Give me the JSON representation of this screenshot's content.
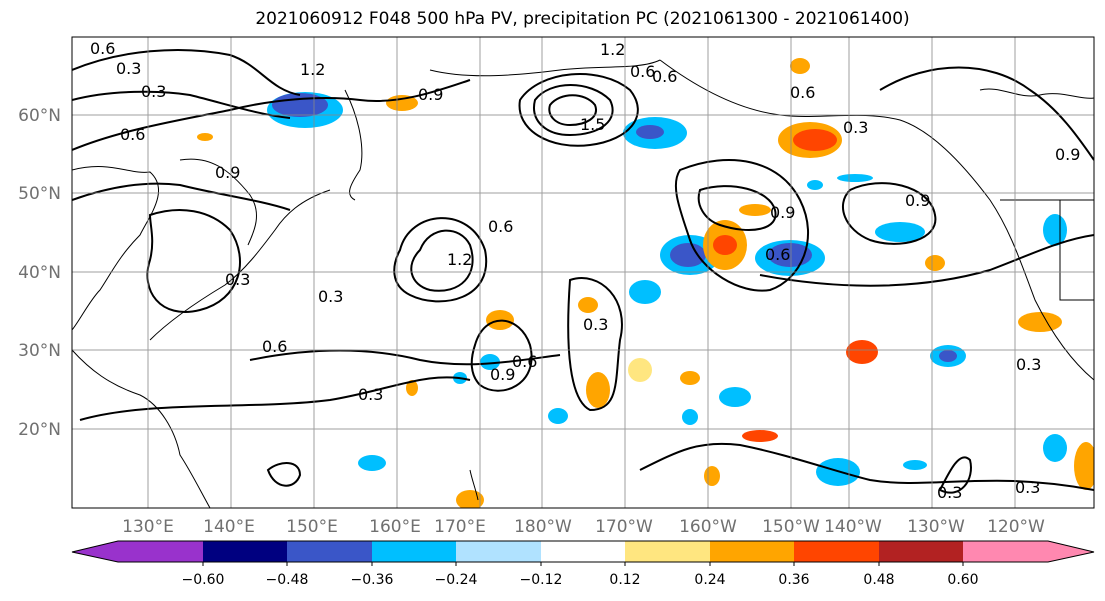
{
  "title": "2021060912 F048 500 hPa PV, precipitation PC (2021061300 - 2021061400)",
  "map": {
    "lat_labels": [
      "60°N",
      "50°N",
      "40°N",
      "30°N",
      "20°N"
    ],
    "lon_labels": [
      "130°E",
      "140°E",
      "150°E",
      "160°E",
      "170°E",
      "180°W",
      "170°W",
      "160°W",
      "150°W",
      "140°W",
      "130°W",
      "120°W"
    ],
    "contour_labels": [
      "0.6",
      "0.3",
      "0.3",
      "1.2",
      "1.2",
      "1.2",
      "0.6",
      "0.9",
      "1.5",
      "0.6",
      "0.3",
      "0.9",
      "0.6",
      "0.3",
      "0.9",
      "0.9",
      "0.6",
      "0.6",
      "0.6",
      "0.9",
      "0.6",
      "0.3",
      "0.3",
      "0.3",
      "0.6",
      "0.3",
      "0.3",
      "0.3",
      "0.9"
    ]
  },
  "colorbar": {
    "tick_labels": [
      "−0.60",
      "−0.48",
      "−0.36",
      "−0.24",
      "−0.12",
      "0.12",
      "0.24",
      "0.36",
      "0.48",
      "0.60"
    ],
    "colors": [
      "#9932cc",
      "#000080",
      "#3a56c8",
      "#00bfff",
      "#b0e2ff",
      "#ffffff",
      "#ffe680",
      "#ffa500",
      "#ff4500",
      "#b22222",
      "#ff88b0"
    ]
  }
}
